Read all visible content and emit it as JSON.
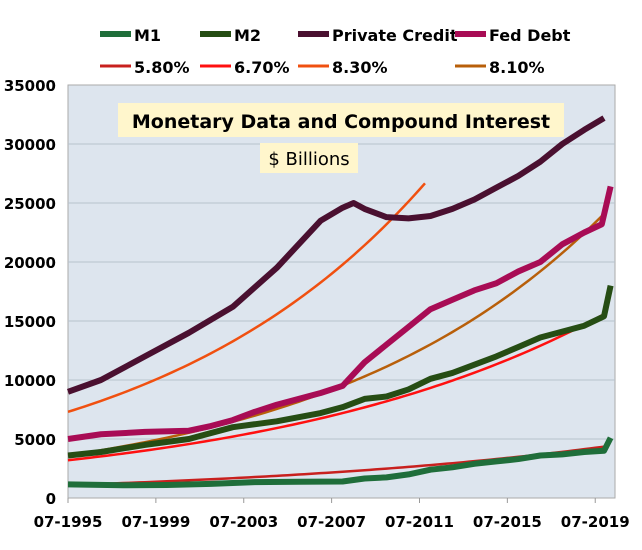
{
  "chart_data": {
    "type": "line",
    "title": "Monetary Data and Compound Interest",
    "subtitle": "$ Billions",
    "xlim": [
      1995.5,
      2020.4
    ],
    "ylim": [
      0,
      35000
    ],
    "x_ticks": [
      1995.5,
      1999.5,
      2003.5,
      2007.5,
      2011.5,
      2015.5,
      2019.5
    ],
    "x_tick_labels": [
      "07-1995",
      "07-1999",
      "07-2003",
      "07-2007",
      "07-2011",
      "07-2015",
      "07-2019"
    ],
    "y_ticks": [
      0,
      5000,
      10000,
      15000,
      20000,
      25000,
      30000,
      35000
    ],
    "y_tick_labels": [
      "0",
      "5000",
      "10000",
      "15000",
      "20000",
      "25000",
      "30000",
      "35000"
    ],
    "grid": "horizontal",
    "legend_placement": "top",
    "plot_background": "#dde5ee",
    "series": [
      {
        "name": "M1",
        "color": "#1f6e3a",
        "x": [
          1995.5,
          1998,
          2000,
          2002,
          2004,
          2006,
          2008,
          2009,
          2010,
          2011,
          2012,
          2013,
          2014,
          2015,
          2016,
          2017,
          2018,
          2019,
          2019.9,
          2020.2
        ],
        "y": [
          1150,
          1080,
          1100,
          1200,
          1350,
          1380,
          1400,
          1650,
          1750,
          2000,
          2400,
          2600,
          2900,
          3100,
          3300,
          3600,
          3700,
          3900,
          4000,
          5100
        ]
      },
      {
        "name": "M2",
        "color": "#264d14",
        "x": [
          1995.5,
          1997,
          1999,
          2001,
          2003,
          2005,
          2007,
          2008,
          2009,
          2010,
          2011,
          2012,
          2013,
          2014,
          2015,
          2016,
          2017,
          2018,
          2019,
          2019.9,
          2020.2
        ],
        "y": [
          3600,
          3900,
          4500,
          5000,
          6000,
          6500,
          7200,
          7700,
          8400,
          8600,
          9200,
          10100,
          10600,
          11300,
          12000,
          12800,
          13600,
          14100,
          14600,
          15400,
          18000
        ]
      },
      {
        "name": "Private Credit",
        "color": "#4a1030",
        "x": [
          1995.5,
          1997,
          1999,
          2001,
          2003,
          2005,
          2007,
          2008,
          2008.5,
          2009,
          2010,
          2011,
          2012,
          2013,
          2014,
          2015,
          2016,
          2017,
          2018,
          2019,
          2019.9
        ],
        "y": [
          9000,
          10000,
          12000,
          14000,
          16200,
          19500,
          23500,
          24600,
          25000,
          24500,
          23800,
          23700,
          23900,
          24500,
          25300,
          26300,
          27300,
          28500,
          30000,
          31200,
          32200
        ]
      },
      {
        "name": "Fed Debt",
        "color": "#a80c55",
        "x": [
          1995.5,
          1997,
          1999,
          2001,
          2002,
          2003,
          2004,
          2005,
          2006,
          2007,
          2008,
          2008.5,
          2009,
          2010,
          2011,
          2012,
          2013,
          2014,
          2015,
          2016,
          2017,
          2018,
          2019,
          2019.8,
          2020.2
        ],
        "y": [
          5000,
          5400,
          5600,
          5700,
          6100,
          6600,
          7300,
          7900,
          8400,
          8900,
          9500,
          10500,
          11500,
          13000,
          14500,
          16000,
          16800,
          17600,
          18200,
          19200,
          20000,
          21500,
          22500,
          23200,
          26400
        ]
      }
    ],
    "compound_curves": [
      {
        "name": "5.80%",
        "color": "#c8201e",
        "rate": 0.058,
        "start_value": 1100,
        "x_range": [
          1995.5,
          2020.2
        ]
      },
      {
        "name": "6.70%",
        "color": "#ff1010",
        "rate": 0.067,
        "start_value": 3200,
        "x_range": [
          1995.5,
          2020.2
        ]
      },
      {
        "name": "8.30%",
        "color": "#f05010",
        "rate": 0.083,
        "start_value": 7300,
        "x_range": [
          1995.5,
          2011.8
        ]
      },
      {
        "name": "8.10%",
        "color": "#b85f0a",
        "rate": 0.081,
        "start_value": 3600,
        "x_range": [
          1995.5,
          2020.2
        ]
      }
    ]
  }
}
